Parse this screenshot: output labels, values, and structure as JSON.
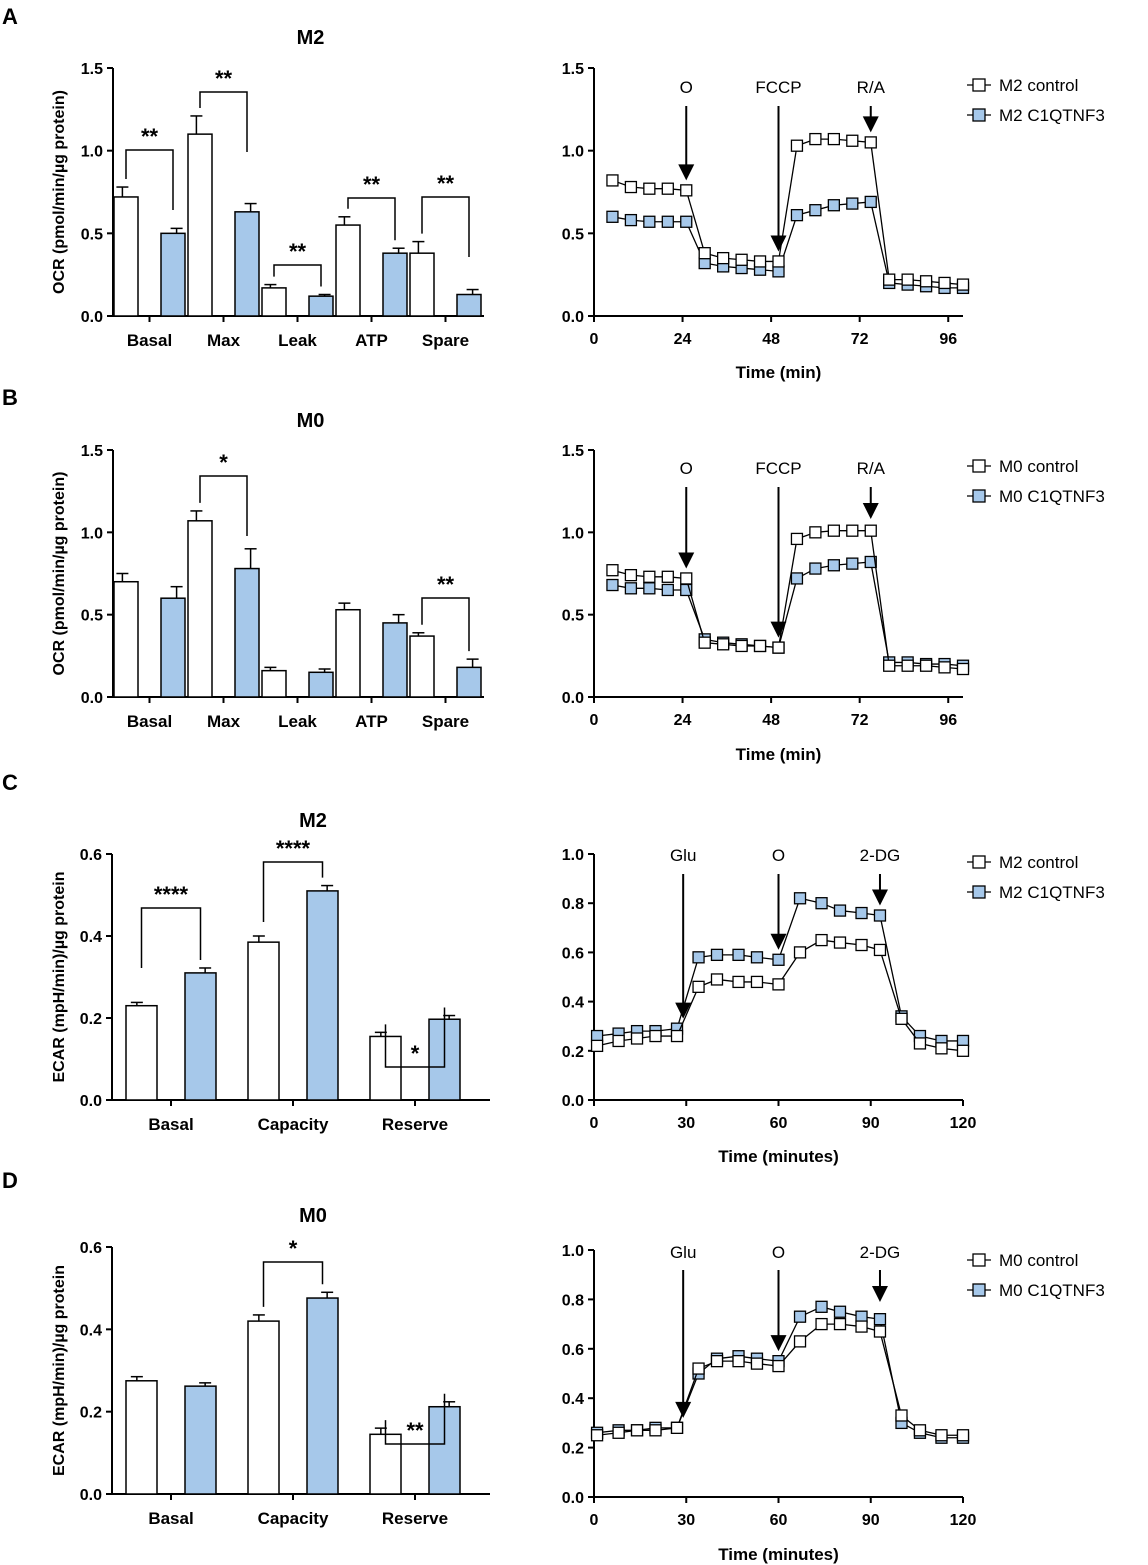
{
  "colors": {
    "control": "#ffffff",
    "treated": "#a6c8ea",
    "stroke": "#000000"
  },
  "chart_data": [
    {
      "id": "A-bar",
      "panel": "A",
      "type": "bar",
      "title": "M2",
      "ylabel": "OCR (pmol/min/µg protein)",
      "xlabel": "",
      "ylim": [
        0,
        1.5
      ],
      "yticks": [
        "0.0",
        "0.5",
        "1.0",
        "1.5"
      ],
      "categories": [
        "Basal",
        "Max",
        "Leak",
        "ATP",
        "Spare"
      ],
      "series": [
        {
          "name": "M2 control",
          "values": [
            0.72,
            1.1,
            0.17,
            0.55,
            0.38
          ],
          "errors": [
            0.06,
            0.11,
            0.02,
            0.05,
            0.07
          ]
        },
        {
          "name": "M2 C1QTNF3",
          "values": [
            0.5,
            0.63,
            0.12,
            0.38,
            0.13
          ],
          "errors": [
            0.03,
            0.05,
            0.01,
            0.03,
            0.03
          ]
        }
      ],
      "significance": [
        "**",
        "**",
        "**",
        "**",
        "**"
      ]
    },
    {
      "id": "A-line",
      "panel": "A",
      "type": "line",
      "title": "",
      "ylabel": "",
      "xlabel": "Time (min)",
      "xlim": [
        0,
        100
      ],
      "ylim": [
        0,
        1.5
      ],
      "xticks": [
        "0",
        "24",
        "48",
        "72",
        "96"
      ],
      "yticks": [
        "0.0",
        "0.5",
        "1.0",
        "1.5"
      ],
      "x": [
        5,
        10,
        15,
        20,
        25,
        30,
        35,
        40,
        45,
        50,
        55,
        60,
        65,
        70,
        75,
        80,
        85,
        90,
        95,
        100
      ],
      "series": [
        {
          "name": "M2 control",
          "values": [
            0.82,
            0.78,
            0.77,
            0.77,
            0.76,
            0.38,
            0.35,
            0.34,
            0.33,
            0.33,
            1.03,
            1.07,
            1.07,
            1.06,
            1.05,
            0.22,
            0.22,
            0.21,
            0.2,
            0.19
          ]
        },
        {
          "name": "M2 C1QTNF3",
          "values": [
            0.6,
            0.58,
            0.57,
            0.57,
            0.57,
            0.32,
            0.3,
            0.29,
            0.28,
            0.27,
            0.61,
            0.64,
            0.67,
            0.68,
            0.69,
            0.2,
            0.19,
            0.18,
            0.17,
            0.17
          ]
        }
      ],
      "annotations": [
        {
          "label": "O",
          "x": 25
        },
        {
          "label": "FCCP",
          "x": 50
        },
        {
          "label": "R/A",
          "x": 75
        }
      ]
    },
    {
      "id": "B-bar",
      "panel": "B",
      "type": "bar",
      "title": "M0",
      "ylabel": "OCR (pmol/min/µg protein)",
      "xlabel": "",
      "ylim": [
        0,
        1.5
      ],
      "yticks": [
        "0.0",
        "0.5",
        "1.0",
        "1.5"
      ],
      "categories": [
        "Basal",
        "Max",
        "Leak",
        "ATP",
        "Spare"
      ],
      "series": [
        {
          "name": "M0 control",
          "values": [
            0.7,
            1.07,
            0.16,
            0.53,
            0.37
          ],
          "errors": [
            0.05,
            0.06,
            0.02,
            0.04,
            0.02
          ]
        },
        {
          "name": "M0 C1QTNF3",
          "values": [
            0.6,
            0.78,
            0.15,
            0.45,
            0.18
          ],
          "errors": [
            0.07,
            0.12,
            0.02,
            0.05,
            0.05
          ]
        }
      ],
      "significance": [
        "",
        "*",
        "",
        "",
        "**"
      ]
    },
    {
      "id": "B-line",
      "panel": "B",
      "type": "line",
      "title": "",
      "ylabel": "",
      "xlabel": "Time (min)",
      "xlim": [
        0,
        100
      ],
      "ylim": [
        0,
        1.5
      ],
      "xticks": [
        "0",
        "24",
        "48",
        "72",
        "96"
      ],
      "yticks": [
        "0.0",
        "0.5",
        "1.0",
        "1.5"
      ],
      "x": [
        5,
        10,
        15,
        20,
        25,
        30,
        35,
        40,
        45,
        50,
        55,
        60,
        65,
        70,
        75,
        80,
        85,
        90,
        95,
        100
      ],
      "series": [
        {
          "name": "M0 control",
          "values": [
            0.77,
            0.74,
            0.73,
            0.73,
            0.72,
            0.33,
            0.32,
            0.31,
            0.31,
            0.3,
            0.96,
            1.0,
            1.01,
            1.01,
            1.01,
            0.19,
            0.19,
            0.19,
            0.18,
            0.17
          ]
        },
        {
          "name": "M0 C1QTNF3",
          "values": [
            0.68,
            0.66,
            0.66,
            0.65,
            0.65,
            0.35,
            0.33,
            0.32,
            0.31,
            0.3,
            0.72,
            0.78,
            0.8,
            0.81,
            0.82,
            0.21,
            0.21,
            0.2,
            0.2,
            0.19
          ]
        }
      ],
      "annotations": [
        {
          "label": "O",
          "x": 25
        },
        {
          "label": "FCCP",
          "x": 50
        },
        {
          "label": "R/A",
          "x": 75
        }
      ]
    },
    {
      "id": "C-bar",
      "panel": "C",
      "type": "bar",
      "title": "M2",
      "ylabel": "ECAR (mpH/min)/µg protein",
      "xlabel": "",
      "ylim": [
        0,
        0.6
      ],
      "yticks": [
        "0.0",
        "0.2",
        "0.4",
        "0.6"
      ],
      "categories": [
        "Basal",
        "Capacity",
        "Reserve"
      ],
      "series": [
        {
          "name": "M2 control",
          "values": [
            0.23,
            0.385,
            0.155
          ],
          "errors": [
            0.008,
            0.015,
            0.01
          ]
        },
        {
          "name": "M2 C1QTNF3",
          "values": [
            0.31,
            0.51,
            0.197
          ],
          "errors": [
            0.012,
            0.013,
            0.009
          ]
        }
      ],
      "significance": [
        "****",
        "****",
        "*"
      ]
    },
    {
      "id": "C-line",
      "panel": "C",
      "type": "line",
      "title": "",
      "ylabel": "",
      "xlabel": "Time (minutes)",
      "xlim": [
        0,
        120
      ],
      "ylim": [
        0,
        1.0
      ],
      "xticks": [
        "0",
        "30",
        "60",
        "90",
        "120"
      ],
      "yticks": [
        "0.0",
        "0.2",
        "0.4",
        "0.6",
        "0.8",
        "1.0"
      ],
      "x": [
        1,
        8,
        14,
        20,
        27,
        34,
        40,
        47,
        53,
        60,
        67,
        74,
        80,
        87,
        93,
        100,
        106,
        113,
        120
      ],
      "series": [
        {
          "name": "M2 control",
          "values": [
            0.22,
            0.24,
            0.25,
            0.26,
            0.26,
            0.46,
            0.49,
            0.48,
            0.48,
            0.47,
            0.6,
            0.65,
            0.64,
            0.63,
            0.61,
            0.33,
            0.23,
            0.21,
            0.2
          ]
        },
        {
          "name": "M2 C1QTNF3",
          "values": [
            0.26,
            0.27,
            0.28,
            0.28,
            0.29,
            0.58,
            0.59,
            0.59,
            0.58,
            0.57,
            0.82,
            0.8,
            0.77,
            0.76,
            0.75,
            0.34,
            0.26,
            0.24,
            0.24
          ]
        }
      ],
      "annotations": [
        {
          "label": "Glu",
          "x": 29
        },
        {
          "label": "O",
          "x": 60
        },
        {
          "label": "2-DG",
          "x": 93
        }
      ]
    },
    {
      "id": "D-bar",
      "panel": "D",
      "type": "bar",
      "title": "M0",
      "ylabel": "ECAR (mpH/min)/µg protein",
      "xlabel": "",
      "ylim": [
        0,
        0.6
      ],
      "yticks": [
        "0.0",
        "0.2",
        "0.4",
        "0.6"
      ],
      "categories": [
        "Basal",
        "Capacity",
        "Reserve"
      ],
      "series": [
        {
          "name": "M0 control",
          "values": [
            0.275,
            0.42,
            0.145
          ],
          "errors": [
            0.01,
            0.015,
            0.015
          ]
        },
        {
          "name": "M0 C1QTNF3",
          "values": [
            0.262,
            0.476,
            0.212
          ],
          "errors": [
            0.008,
            0.014,
            0.012
          ]
        }
      ],
      "significance": [
        "",
        "*",
        "**"
      ]
    },
    {
      "id": "D-line",
      "panel": "D",
      "type": "line",
      "title": "",
      "ylabel": "",
      "xlabel": "Time (minutes)",
      "xlim": [
        0,
        120
      ],
      "ylim": [
        0,
        1.0
      ],
      "xticks": [
        "0",
        "30",
        "60",
        "90",
        "120"
      ],
      "yticks": [
        "0.0",
        "0.2",
        "0.4",
        "0.6",
        "0.8",
        "1.0"
      ],
      "x": [
        1,
        8,
        14,
        20,
        27,
        34,
        40,
        47,
        53,
        60,
        67,
        74,
        80,
        87,
        93,
        100,
        106,
        113,
        120
      ],
      "series": [
        {
          "name": "M0 control",
          "values": [
            0.25,
            0.26,
            0.27,
            0.27,
            0.28,
            0.52,
            0.55,
            0.55,
            0.54,
            0.53,
            0.63,
            0.7,
            0.7,
            0.69,
            0.67,
            0.33,
            0.27,
            0.25,
            0.25
          ]
        },
        {
          "name": "M0 C1QTNF3",
          "values": [
            0.26,
            0.27,
            0.27,
            0.28,
            0.28,
            0.5,
            0.56,
            0.57,
            0.56,
            0.55,
            0.73,
            0.77,
            0.75,
            0.73,
            0.72,
            0.3,
            0.26,
            0.24,
            0.24
          ]
        }
      ],
      "annotations": [
        {
          "label": "Glu",
          "x": 29
        },
        {
          "label": "O",
          "x": 60
        },
        {
          "label": "2-DG",
          "x": 93
        }
      ]
    }
  ],
  "panel_letters": [
    "A",
    "B",
    "C",
    "D"
  ]
}
